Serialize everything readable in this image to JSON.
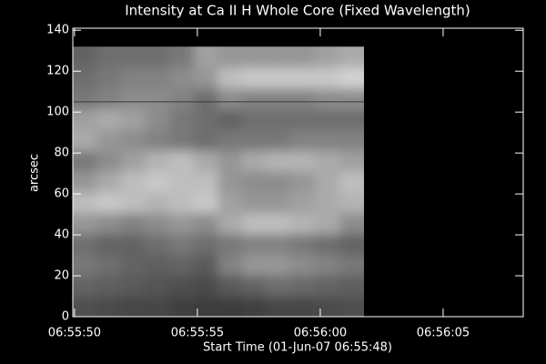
{
  "chart_data": {
    "type": "heatmap",
    "title": "Intensity at Ca II H Whole Core (Fixed Wavelength)",
    "x_label": "Start Time (01-Jun-07 06:55:48)",
    "y_label": "arcsec",
    "xlim": [
      "06:55:49.93",
      "06:56:08.26"
    ],
    "ylim": [
      0,
      141
    ],
    "xticks": [
      "06:55:50",
      "06:55:55",
      "06:56:00",
      "06:56:05"
    ],
    "yticks": [
      0,
      20,
      40,
      60,
      80,
      100,
      120,
      140
    ],
    "x_extent": [
      "06:55:49.93",
      "06:56:01.78"
    ],
    "y_extent": [
      0,
      132
    ],
    "hline": 105,
    "z": [
      [
        80,
        75,
        70,
        70,
        65,
        60,
        60,
        65,
        70,
        70,
        75,
        80
      ],
      [
        100,
        95,
        90,
        85,
        80,
        75,
        90,
        100,
        110,
        105,
        100,
        95
      ],
      [
        120,
        110,
        100,
        95,
        100,
        90,
        130,
        150,
        150,
        140,
        130,
        120
      ],
      [
        110,
        100,
        100,
        110,
        120,
        110,
        120,
        130,
        130,
        120,
        110,
        100
      ],
      [
        150,
        140,
        130,
        140,
        150,
        140,
        170,
        190,
        190,
        180,
        170,
        140
      ],
      [
        190,
        200,
        190,
        180,
        190,
        200,
        160,
        150,
        150,
        160,
        170,
        180
      ],
      [
        150,
        170,
        190,
        200,
        190,
        190,
        150,
        140,
        140,
        150,
        170,
        190
      ],
      [
        120,
        140,
        160,
        180,
        190,
        170,
        150,
        170,
        180,
        180,
        170,
        160
      ],
      [
        170,
        150,
        140,
        130,
        120,
        110,
        120,
        120,
        120,
        130,
        130,
        130
      ],
      [
        160,
        170,
        160,
        140,
        120,
        110,
        100,
        110,
        110,
        110,
        110,
        110
      ],
      [
        120,
        130,
        140,
        140,
        130,
        110,
        140,
        130,
        130,
        130,
        140,
        140
      ],
      [
        110,
        120,
        130,
        130,
        140,
        150,
        190,
        200,
        200,
        200,
        200,
        210
      ],
      [
        100,
        110,
        110,
        110,
        120,
        160,
        150,
        150,
        150,
        150,
        160,
        170
      ]
    ]
  }
}
